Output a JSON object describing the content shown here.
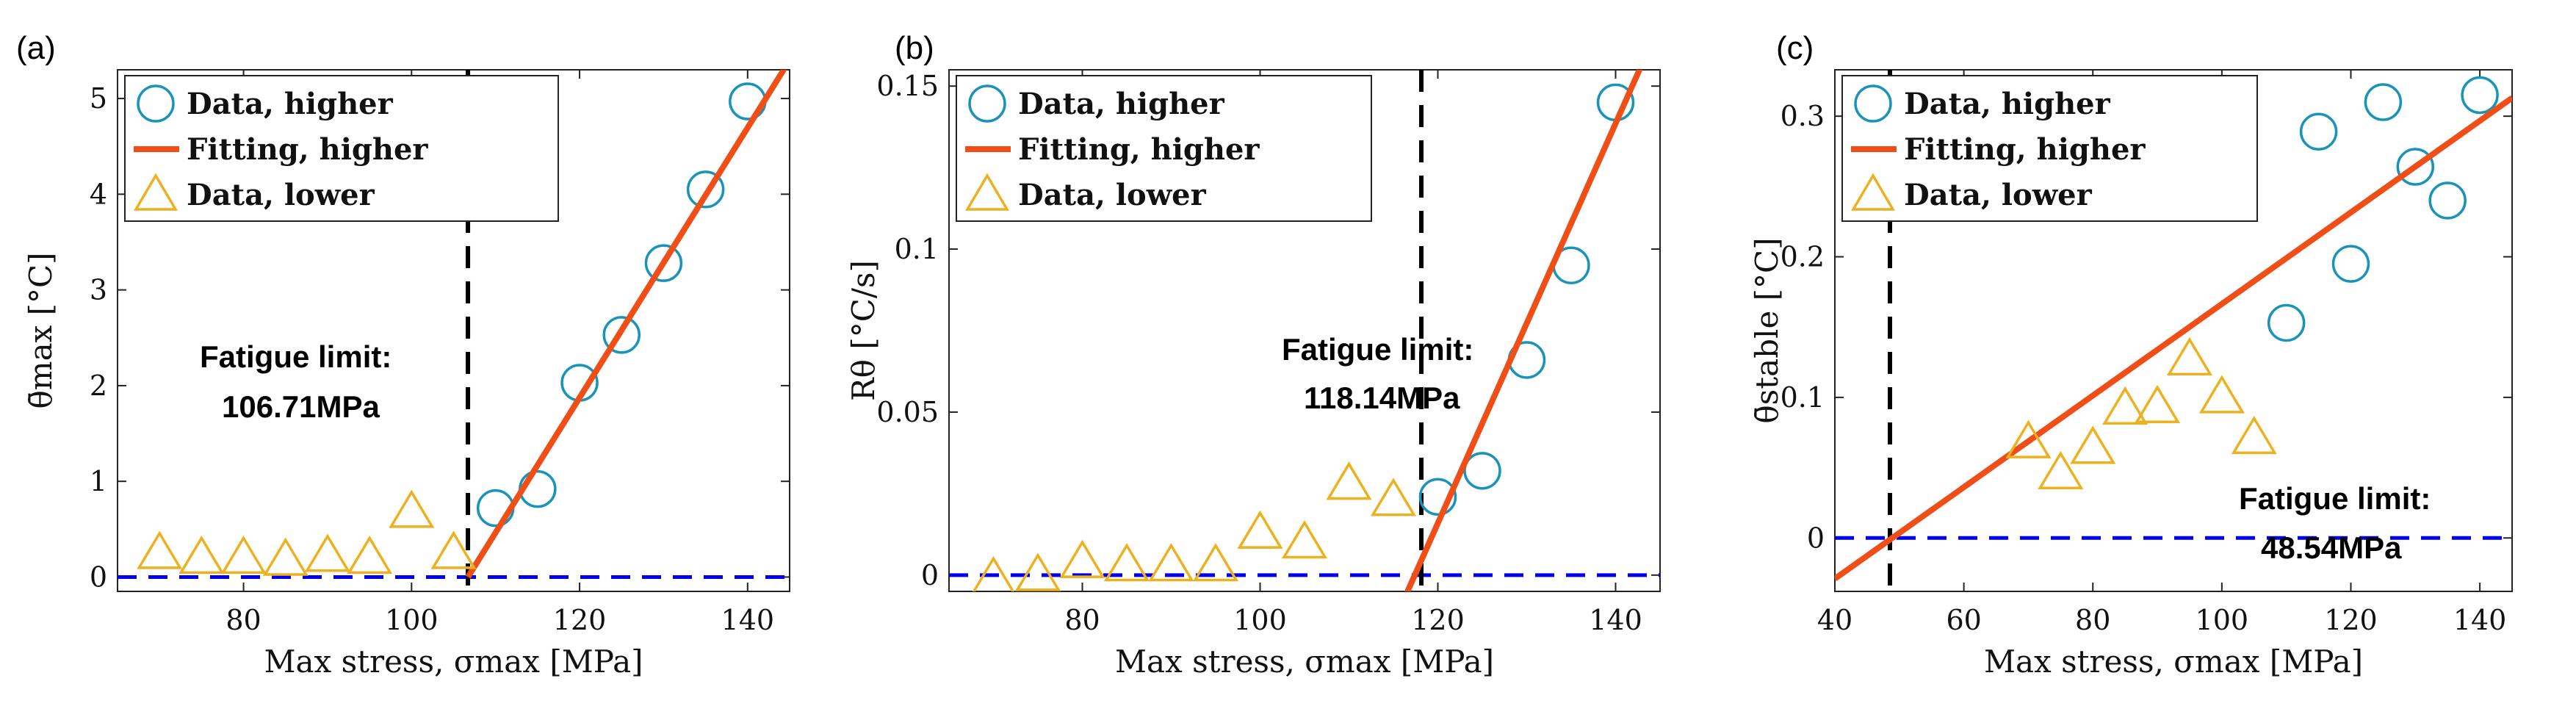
{
  "colors": {
    "data_higher": "#1a93b8",
    "fitting_higher": "#f04e16",
    "data_lower": "#edb120",
    "fatigue_line": "#000000",
    "zero_line": "#0000ee"
  },
  "chart_data": [
    {
      "type": "scatter",
      "panel_label": "(a)",
      "title": "",
      "xlabel": "Max stress, σmax [MPa]",
      "ylabel": "θ̄max [°C]",
      "xlim": [
        65,
        145
      ],
      "ylim": [
        -0.15,
        5.3
      ],
      "xticks": [
        80,
        100,
        120,
        140
      ],
      "yticks": [
        0,
        1,
        2,
        3,
        4,
        5
      ],
      "legend": [
        "Data, higher",
        "Fitting, higher",
        "Data, lower"
      ],
      "legend_position": "top-left",
      "series": [
        {
          "name": "Data, higher",
          "marker": "circle",
          "x": [
            110,
            115,
            120,
            125,
            130,
            135,
            140
          ],
          "y": [
            0.72,
            0.92,
            2.03,
            2.53,
            3.28,
            4.05,
            4.97
          ]
        },
        {
          "name": "Fitting, higher",
          "style": "line",
          "x": [
            106.71,
            145
          ],
          "y": [
            0,
            5.4
          ]
        },
        {
          "name": "Data, lower",
          "marker": "triangle",
          "x": [
            70,
            75,
            80,
            85,
            90,
            95,
            100,
            105
          ],
          "y": [
            0.25,
            0.2,
            0.2,
            0.18,
            0.22,
            0.2,
            0.68,
            0.25
          ]
        }
      ],
      "fatigue_limit_x": 106.71,
      "baseline_y": 0,
      "annotation": {
        "title": "Fatigue limit:",
        "value": "106.71MPa"
      }
    },
    {
      "type": "scatter",
      "panel_label": "(b)",
      "title": "",
      "xlabel": "Max stress, σmax [MPa]",
      "ylabel": "Rθ [°C/s]",
      "xlim": [
        65,
        145
      ],
      "ylim": [
        -0.005,
        0.155
      ],
      "xticks": [
        80,
        100,
        120,
        140
      ],
      "yticks": [
        0,
        0.05,
        0.1,
        0.15
      ],
      "legend": [
        "Data, higher",
        "Fitting, higher",
        "Data, lower"
      ],
      "legend_position": "top-left",
      "series": [
        {
          "name": "Data, higher",
          "marker": "circle",
          "x": [
            120,
            125,
            130,
            135,
            140
          ],
          "y": [
            0.024,
            0.032,
            0.066,
            0.095,
            0.145
          ]
        },
        {
          "name": "Fitting, higher",
          "style": "line",
          "x": [
            116.1,
            143.5
          ],
          "y": [
            -0.008,
            0.16
          ]
        },
        {
          "name": "Data, lower",
          "marker": "triangle",
          "x": [
            70,
            75,
            80,
            85,
            90,
            95,
            100,
            105,
            110,
            115
          ],
          "y": [
            -0.001,
            0.0,
            0.004,
            0.003,
            0.003,
            0.003,
            0.013,
            0.01,
            0.028,
            0.023
          ]
        }
      ],
      "fatigue_limit_x": 118.14,
      "baseline_y": 0,
      "annotation": {
        "title": "Fatigue limit:",
        "value": "118.14MPa"
      }
    },
    {
      "type": "scatter",
      "panel_label": "(c)",
      "title": "",
      "xlabel": "Max stress, σmax [MPa]",
      "ylabel": "θ̄stable [°C]",
      "xlim": [
        40,
        145
      ],
      "ylim": [
        -0.038,
        0.333
      ],
      "xticks": [
        40,
        60,
        80,
        100,
        120,
        140
      ],
      "yticks": [
        0,
        0.1,
        0.2,
        0.3
      ],
      "legend": [
        "Data, higher",
        "Fitting, higher",
        "Data, lower"
      ],
      "legend_position": "top-left",
      "series": [
        {
          "name": "Data, higher",
          "marker": "circle",
          "x": [
            110,
            115,
            120,
            125,
            130,
            135,
            140
          ],
          "y": [
            0.153,
            0.289,
            0.195,
            0.31,
            0.264,
            0.24,
            0.315
          ]
        },
        {
          "name": "Fitting, higher",
          "style": "line",
          "x": [
            40,
            145
          ],
          "y": [
            -0.029,
            0.313
          ]
        },
        {
          "name": "Data, lower",
          "marker": "triangle",
          "x": [
            70,
            75,
            80,
            85,
            90,
            95,
            100,
            105
          ],
          "y": [
            0.068,
            0.046,
            0.064,
            0.092,
            0.093,
            0.127,
            0.1,
            0.071
          ]
        }
      ],
      "fatigue_limit_x": 48.54,
      "baseline_y": 0,
      "annotation": {
        "title": "Fatigue limit:",
        "value": "48.54MPa"
      }
    }
  ]
}
